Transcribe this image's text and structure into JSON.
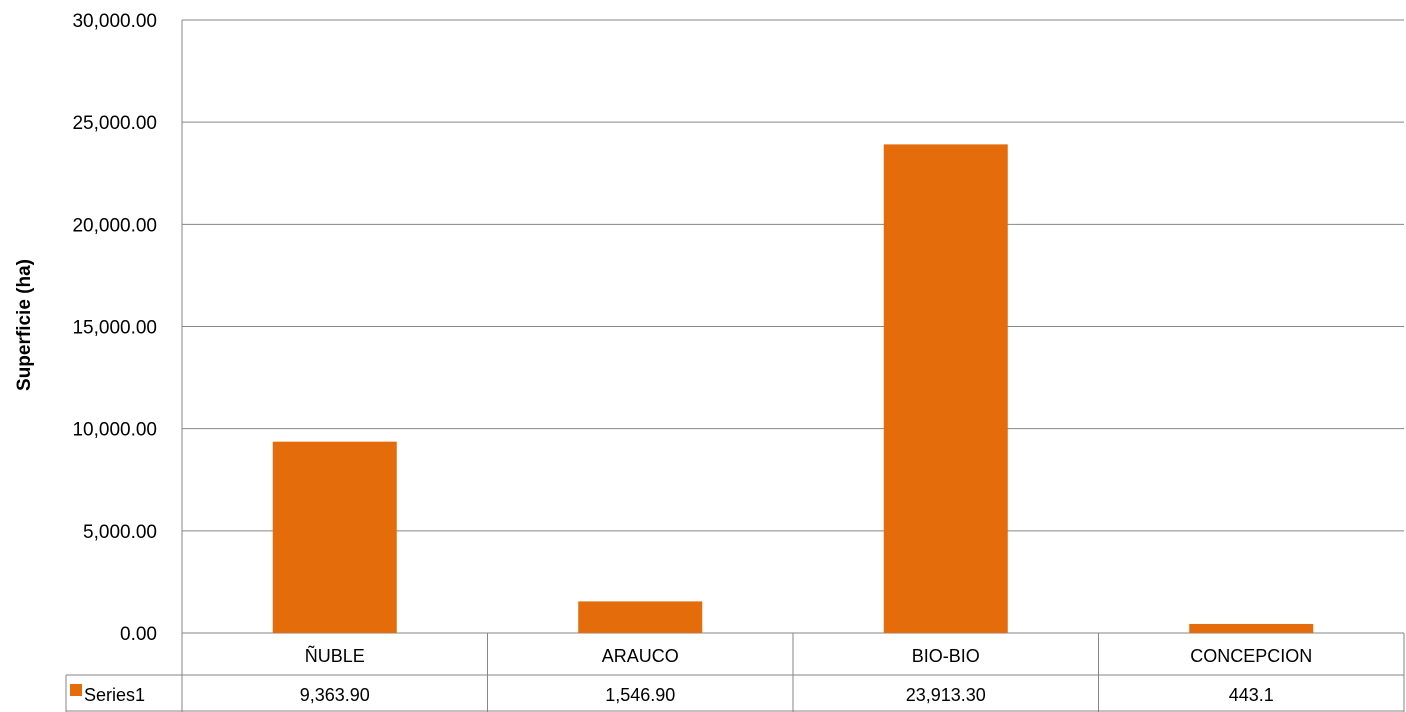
{
  "chart_data": {
    "type": "bar",
    "categories": [
      "ÑUBLE",
      "ARAUCO",
      "BIO-BIO",
      "CONCEPCION"
    ],
    "series": [
      {
        "name": "Series1",
        "values": [
          9363.9,
          1546.9,
          23913.3,
          443.1
        ],
        "value_labels": [
          "9,363.90",
          "1,546.90",
          "23,913.30",
          "443.1"
        ],
        "color": "#E46C0A"
      }
    ],
    "ylabel": "Superficie (ha)",
    "ylim": [
      0,
      30000
    ],
    "yticks": [
      0,
      5000,
      10000,
      15000,
      20000,
      25000,
      30000
    ],
    "ytick_labels": [
      "0.00",
      "5,000.00",
      "10,000.00",
      "15,000.00",
      "20,000.00",
      "25,000.00",
      "30,000.00"
    ],
    "grid": true,
    "legend": "data-table"
  },
  "colors": {
    "bar": "#E46C0A",
    "grid": "#868686",
    "axis": "#868686"
  }
}
